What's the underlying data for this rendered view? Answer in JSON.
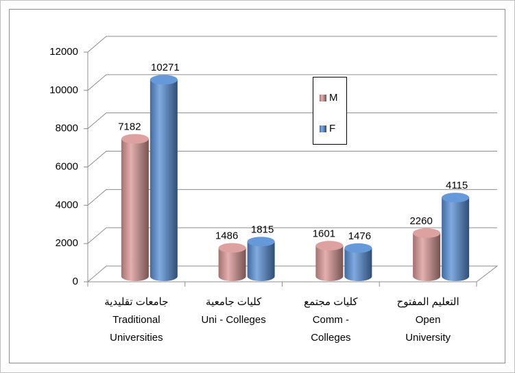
{
  "chart_data": {
    "type": "bar3d",
    "categories": [
      [
        "جامعات تقليدية",
        "Traditional",
        "Universities"
      ],
      [
        "كليات جامعية",
        "Uni - Colleges"
      ],
      [
        "كليات مجتمع",
        "Comm -",
        "Colleges"
      ],
      [
        "التعليم المفتوح",
        "Open",
        "University"
      ]
    ],
    "series": [
      {
        "name": "M",
        "color": "#d99694",
        "values": [
          7182,
          1486,
          1601,
          2260
        ]
      },
      {
        "name": "F",
        "color": "#558ed5",
        "values": [
          10271,
          1815,
          1476,
          4115
        ]
      }
    ],
    "ylim": [
      0,
      12000
    ],
    "yticks": [
      0,
      2000,
      4000,
      6000,
      8000,
      10000,
      12000
    ],
    "grid": true
  }
}
